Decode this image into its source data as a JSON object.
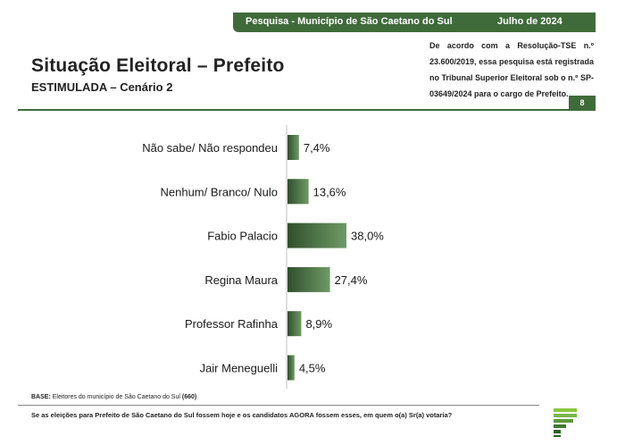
{
  "header": {
    "survey_label": "Pesquisa - Município de São Caetano do Sul",
    "date_label": "Julho de 2024"
  },
  "title": "Situação Eleitoral – Prefeito",
  "subtitle": "ESTIMULADA – Cenário 2",
  "registration_note": "De acordo com a Resolução-TSE n.º 23.600/2019, essa pesquisa está registrada no Tribunal Superior Eleitoral sob o n.º SP-03649/2024 para o cargo de Prefeito.",
  "page_number": "8",
  "footer": {
    "base_label": "BASE:",
    "base_text": " Eleitores do município de São Caetano do Sul ",
    "base_count": "(660)",
    "question": "Se as eleições para Prefeito de São Caetano do Sul fossem hoje e os candidatos AGORA fossem esses, em quem o(a) Sr(a) votaria?"
  },
  "colors": {
    "brand_green": "#3f6b3a",
    "bar_dark": "#2f4f2c",
    "bar_light": "#6f9a66"
  },
  "chart_data": {
    "type": "bar",
    "orientation": "horizontal",
    "categories": [
      "Não sabe/ Não respondeu",
      "Nenhum/ Branco/ Nulo",
      "Fabio Palacio",
      "Regina Maura",
      "Professor Rafinha",
      "Jair Meneguelli"
    ],
    "values": [
      7.4,
      13.6,
      38.0,
      27.4,
      8.9,
      4.5
    ],
    "value_labels": [
      "7,4%",
      "13,6%",
      "38,0%",
      "27,4%",
      "8,9%",
      "4,5%"
    ],
    "unit": "%",
    "grid": false,
    "legend": "none"
  }
}
